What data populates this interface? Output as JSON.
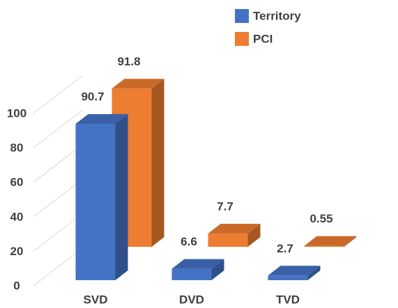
{
  "chart_data": {
    "type": "bar3d",
    "categories": [
      "SVD",
      "DVD",
      "TVD"
    ],
    "series": [
      {
        "name": "Territory",
        "color": "#4472c4",
        "values": [
          90.7,
          6.6,
          2.7
        ]
      },
      {
        "name": "PCI",
        "color": "#ed7d31",
        "values": [
          91.8,
          7.7,
          0.55
        ]
      }
    ],
    "ylim": [
      0,
      100
    ],
    "yticks": [
      0,
      20,
      40,
      60,
      80,
      100
    ],
    "grid": true,
    "legend": "top-right"
  }
}
